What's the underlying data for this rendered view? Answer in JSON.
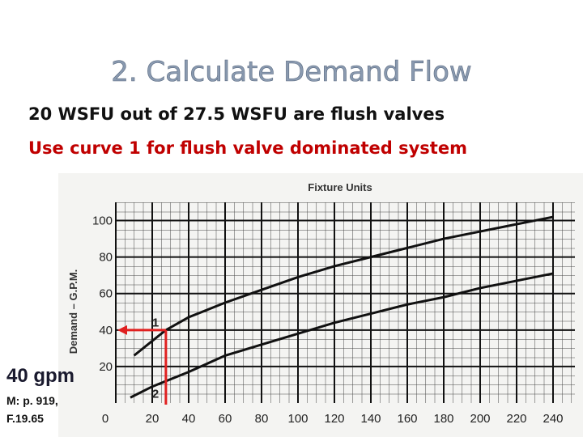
{
  "title": "2. Calculate Demand Flow",
  "lines": [
    "20 WSFU out of 27.5 WSFU are flush valves",
    "Use curve 1 for flush valve dominated system"
  ],
  "callout": "40 gpm",
  "source": [
    "M: p. 919,",
    "F.19.65"
  ],
  "chart_data": {
    "type": "line",
    "xlabel": "Fixture Units",
    "ylabel": "Demand – G.P.M.",
    "xlim": [
      0,
      252
    ],
    "ylim": [
      0,
      110
    ],
    "xticks": [
      0,
      20,
      40,
      60,
      80,
      100,
      120,
      140,
      160,
      180,
      200,
      220,
      240
    ],
    "yticks": [
      20,
      40,
      60,
      80,
      100
    ],
    "grid": true,
    "series": [
      {
        "name": "1",
        "color": "#111111",
        "x": [
          10,
          20,
          27.5,
          40,
          60,
          80,
          100,
          120,
          140,
          160,
          180,
          200,
          220,
          240
        ],
        "values": [
          26,
          34,
          40,
          47,
          55,
          62,
          69,
          75,
          80,
          85,
          90,
          94,
          98,
          102
        ]
      },
      {
        "name": "2",
        "color": "#111111",
        "x": [
          8,
          20,
          40,
          60,
          80,
          100,
          120,
          140,
          160,
          180,
          200,
          220,
          240
        ],
        "values": [
          3,
          9,
          17,
          26,
          32,
          38,
          44,
          49,
          54,
          58,
          63,
          67,
          71
        ]
      }
    ],
    "marker": {
      "x": 27.5,
      "y": 40,
      "color": "#e02020"
    }
  }
}
